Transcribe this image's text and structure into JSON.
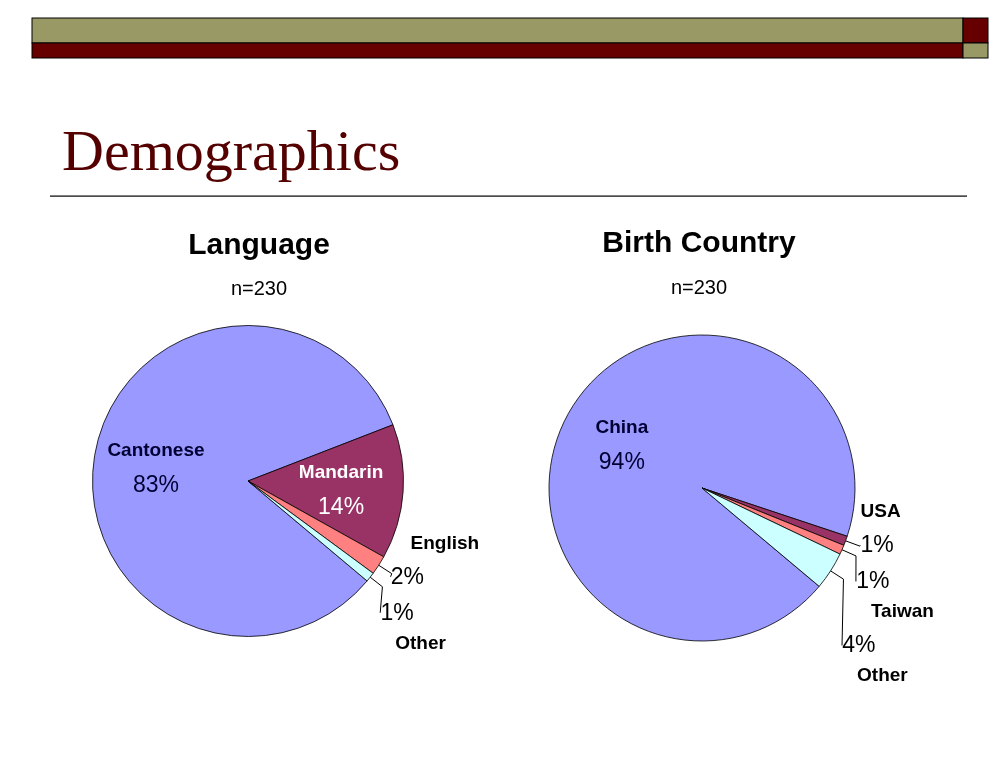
{
  "chart_data": [
    {
      "type": "other",
      "title": "Demographics"
    },
    {
      "type": "pie",
      "title": "Language",
      "subtitle": "n=230",
      "categories": [
        "Cantonese",
        "Mandarin",
        "English",
        "Other"
      ],
      "values": [
        83,
        14,
        2,
        1
      ],
      "colors": [
        "#9999ff",
        "#993366",
        "#ff8080",
        "#ccffff"
      ],
      "value_labels": [
        "83%",
        "14%",
        "2%",
        "1%"
      ]
    },
    {
      "type": "pie",
      "title": "Birth Country",
      "subtitle": "n=230",
      "categories": [
        "China",
        "USA",
        "Taiwan",
        "Other"
      ],
      "values": [
        94,
        1,
        1,
        4
      ],
      "colors": [
        "#9999ff",
        "#993366",
        "#ff8080",
        "#ccffff"
      ],
      "value_labels": [
        "94%",
        "1%",
        "1%",
        "4%"
      ]
    }
  ]
}
